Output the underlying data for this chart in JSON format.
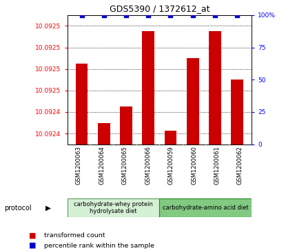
{
  "title": "GDS5390 / 1372612_at",
  "samples": [
    "GSM1200063",
    "GSM1200064",
    "GSM1200065",
    "GSM1200066",
    "GSM1200059",
    "GSM1200060",
    "GSM1200061",
    "GSM1200062"
  ],
  "red_values": [
    10.09253,
    10.09242,
    10.09245,
    10.09259,
    10.092405,
    10.09254,
    10.09259,
    10.0925
  ],
  "blue_values": [
    100,
    100,
    100,
    100,
    100,
    100,
    100,
    100
  ],
  "ylim_left": [
    10.09238,
    10.09262
  ],
  "ylim_right": [
    0,
    100
  ],
  "ytick_positions": [
    10.0924,
    10.09244,
    10.09248,
    10.09252,
    10.09256,
    10.0926
  ],
  "ytick_labels": [
    "10.0924",
    "10.0924",
    "10.0925",
    "10.0925",
    "10.0925",
    "10.0925"
  ],
  "yticks_right": [
    0,
    25,
    50,
    75,
    100
  ],
  "group1_label": "carbohydrate-whey protein\nhydrolysate diet",
  "group2_label": "carbohydrate-amino acid diet",
  "group1_color": "#d5f0d5",
  "group2_color": "#82c982",
  "bar_color": "#cc0000",
  "dot_color": "#0000cc",
  "bg_sample_color": "#cccccc",
  "legend_red": "transformed count",
  "legend_blue": "percentile rank within the sample"
}
